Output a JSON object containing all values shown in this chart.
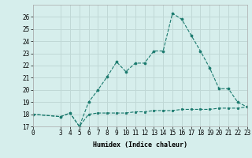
{
  "title": "",
  "xlabel": "Humidex (Indice chaleur)",
  "background_color": "#d6eeec",
  "grid_color": "#c0d8d6",
  "line_color": "#1a7a6e",
  "xlim": [
    0,
    23
  ],
  "ylim": [
    17,
    27
  ],
  "yticks": [
    17,
    18,
    19,
    20,
    21,
    22,
    23,
    24,
    25,
    26
  ],
  "xticks": [
    0,
    3,
    4,
    5,
    6,
    7,
    8,
    9,
    10,
    11,
    12,
    13,
    14,
    15,
    16,
    17,
    18,
    19,
    20,
    21,
    22,
    23
  ],
  "xtick_labels": [
    "0",
    "3",
    "4",
    "5",
    "6",
    "7",
    "8",
    "9",
    "10",
    "11",
    "12",
    "13",
    "14",
    "15",
    "16",
    "17",
    "18",
    "19",
    "20",
    "21",
    "22",
    "23"
  ],
  "series1_x": [
    0,
    3,
    4,
    5,
    6,
    7,
    8,
    9,
    10,
    11,
    12,
    13,
    14,
    15,
    16,
    17,
    18,
    19,
    20,
    21,
    22,
    23
  ],
  "series1_y": [
    18.0,
    17.8,
    18.1,
    17.0,
    18.0,
    18.1,
    18.1,
    18.1,
    18.1,
    18.2,
    18.2,
    18.3,
    18.3,
    18.3,
    18.4,
    18.4,
    18.4,
    18.4,
    18.5,
    18.5,
    18.5,
    18.6
  ],
  "series2_x": [
    0,
    3,
    4,
    5,
    6,
    7,
    8,
    9,
    10,
    11,
    12,
    13,
    14,
    15,
    16,
    17,
    18,
    19,
    20,
    21,
    22,
    23
  ],
  "series2_y": [
    18.0,
    17.8,
    18.1,
    17.0,
    19.0,
    20.0,
    21.1,
    22.3,
    21.5,
    22.2,
    22.2,
    23.2,
    23.2,
    26.3,
    25.8,
    24.5,
    23.2,
    21.8,
    20.1,
    20.1,
    19.0,
    18.6
  ],
  "tick_fontsize": 5.5,
  "xlabel_fontsize": 6.0
}
